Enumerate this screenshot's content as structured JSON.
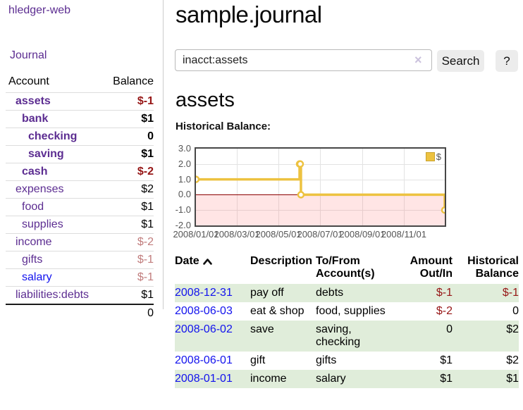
{
  "app": {
    "brand": "hledger-web",
    "nav": {
      "journal": "Journal"
    }
  },
  "sidebar": {
    "account_header": "Account",
    "balance_header": "Balance",
    "rows": [
      {
        "name": "assets",
        "balance": "$-1"
      },
      {
        "name": "bank",
        "balance": "$1"
      },
      {
        "name": "checking",
        "balance": "0"
      },
      {
        "name": "saving",
        "balance": "$1"
      },
      {
        "name": "cash",
        "balance": "$-2"
      },
      {
        "name": "expenses",
        "balance": "$2"
      },
      {
        "name": "food",
        "balance": "$1"
      },
      {
        "name": "supplies",
        "balance": "$1"
      },
      {
        "name": "income",
        "balance": "$-2"
      },
      {
        "name": "gifts",
        "balance": "$-1"
      },
      {
        "name": "salary",
        "balance": "$-1"
      },
      {
        "name": "liabilities:debts",
        "balance": "$1"
      }
    ],
    "total": "0"
  },
  "main": {
    "title": "sample.journal",
    "search": {
      "value": "inacct:assets",
      "clear_icon": "×",
      "search_button": "Search",
      "help_button": "?"
    },
    "account_heading": "assets",
    "section_label": "Historical Balance:"
  },
  "chart_data": {
    "type": "line",
    "steps": true,
    "title": "Historical Balance",
    "series": [
      {
        "name": "$",
        "x": [
          "2008/01/01",
          "2008/06/01",
          "2008/06/02",
          "2008/06/03",
          "2008/12/31"
        ],
        "values": [
          1,
          2,
          2,
          0,
          -1
        ]
      }
    ],
    "x_domain": [
      "2008/01/01",
      "2008/12/31"
    ],
    "ylim": [
      -2,
      3
    ],
    "y_ticks": [
      3,
      2,
      1,
      0,
      -1,
      -2
    ],
    "y_tick_labels": [
      "3.0",
      "2.0",
      "1.0",
      "0.0",
      "-1.0",
      "-2.0"
    ],
    "x_tick_labels": [
      "2008/01/01",
      "2008/03/01",
      "2008/05/01",
      "2008/07/01",
      "2008/09/01",
      "2008/11/01"
    ],
    "legend_position": "top-right",
    "line_color": "#edc240",
    "zero_line_color": "#8b0000",
    "negative_region_color": "rgba(255,70,70,0.14)",
    "grid": true
  },
  "register": {
    "headers": {
      "date": "Date",
      "description": "Description",
      "tofrom": "To/From Account(s)",
      "amount": "Amount Out/In",
      "historical": "Historical Balance"
    },
    "rows": [
      {
        "date": "2008-12-31",
        "description": "pay off",
        "tofrom": "debts",
        "amount": "$-1",
        "historical": "$-1"
      },
      {
        "date": "2008-06-03",
        "description": "eat & shop",
        "tofrom": "food, supplies",
        "amount": "$-2",
        "historical": "0"
      },
      {
        "date": "2008-06-02",
        "description": "save",
        "tofrom": "saving, checking",
        "amount": "0",
        "historical": "$2"
      },
      {
        "date": "2008-06-01",
        "description": "gift",
        "tofrom": "gifts",
        "amount": "$1",
        "historical": "$2"
      },
      {
        "date": "2008-01-01",
        "description": "income",
        "tofrom": "salary",
        "amount": "$1",
        "historical": "$1"
      }
    ]
  },
  "colors": {
    "accent_purple": "#5c2d91",
    "link_blue": "#1212ee",
    "negative_red": "#961616",
    "muted_negative": "#c17d7d",
    "row_green": "#e0edda",
    "chart_yellow": "#edc240"
  }
}
